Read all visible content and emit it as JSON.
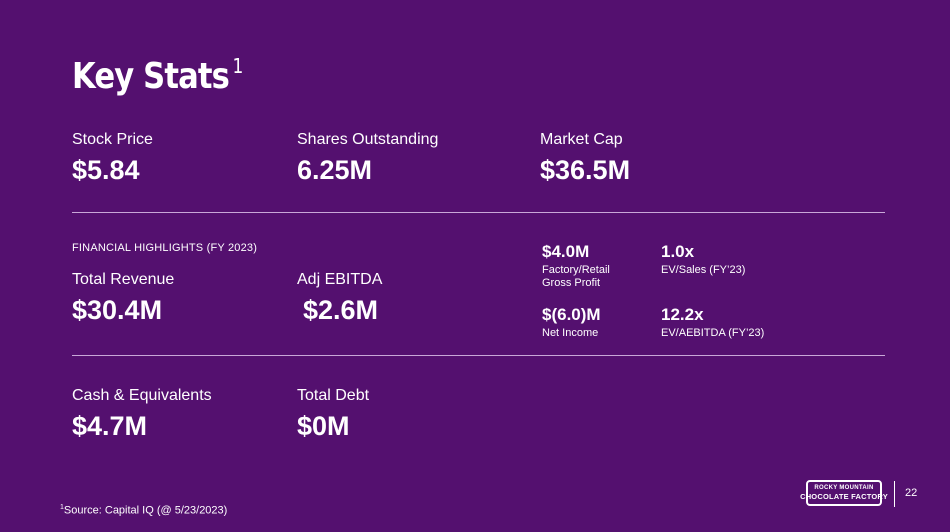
{
  "title": {
    "text": "Key Stats",
    "footnote_marker": "1"
  },
  "top_stats": [
    {
      "label": "Stock Price",
      "value": "$5.84"
    },
    {
      "label": "Shares Outstanding",
      "value": "6.25M"
    },
    {
      "label": "Market Cap",
      "value": "$36.5M"
    }
  ],
  "financial_highlights": {
    "section_label": "FINANCIAL HIGHLIGHTS (FY 2023)",
    "total_revenue": {
      "label": "Total Revenue",
      "value": "$30.4M"
    },
    "adj_ebitda": {
      "label": "Adj EBITDA",
      "value": "$2.6M"
    },
    "gross_profit": {
      "value": "$4.0M",
      "label": "Factory/Retail Gross Profit"
    },
    "net_income": {
      "value": "$(6.0)M",
      "label": "Net Income"
    },
    "ev_sales": {
      "value": "1.0x",
      "label": "EV/Sales (FY’23)"
    },
    "ev_aebitda": {
      "value": "12.2x",
      "label": "EV/AEBITDA (FY’23)"
    }
  },
  "balance": [
    {
      "label": "Cash & Equivalents",
      "value": "$4.7M"
    },
    {
      "label": "Total Debt",
      "value": "$0M"
    }
  ],
  "footnote": {
    "marker": "1",
    "text": "Source: Capital IQ (@ 5/23/2023)"
  },
  "logo": {
    "top": "ROCKY MOUNTAIN",
    "bottom": "CHOCOLATE FACTORY"
  },
  "page_number": "22"
}
